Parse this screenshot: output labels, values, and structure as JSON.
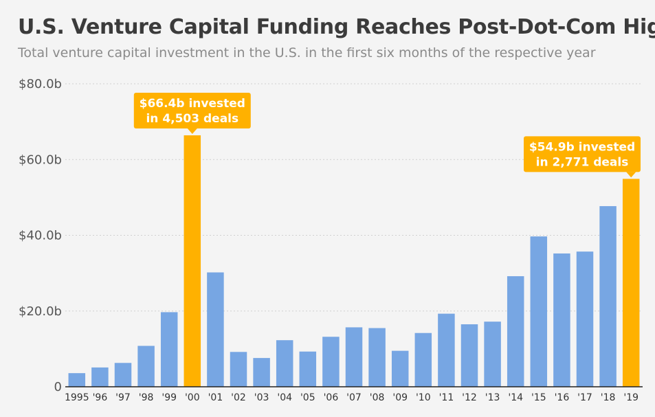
{
  "title": "U.S. Venture Capital Funding Reaches Post-Dot-Com High",
  "subtitle": "Total venture capital investment in the U.S. in the first six months of the respective year",
  "colors": {
    "bar": "#77a6e3",
    "highlight": "#ffb100",
    "grid": "#cfcfcf",
    "background": "#f4f4f4"
  },
  "chart_data": {
    "type": "bar",
    "categories": [
      "1995",
      "'96",
      "'97",
      "'98",
      "'99",
      "'00",
      "'01",
      "'02",
      "'03",
      "'04",
      "'05",
      "'06",
      "'07",
      "'08",
      "'09",
      "'10",
      "'11",
      "'12",
      "'13",
      "'14",
      "'15",
      "'16",
      "'17",
      "'18",
      "'19"
    ],
    "values": [
      3.6,
      5.1,
      6.3,
      10.8,
      19.7,
      66.4,
      30.2,
      9.2,
      7.6,
      12.3,
      9.3,
      13.2,
      15.7,
      15.5,
      9.5,
      14.2,
      19.3,
      16.5,
      17.2,
      29.2,
      39.7,
      35.2,
      35.7,
      47.7,
      54.9
    ],
    "highlighted": [
      "'00",
      "'19"
    ],
    "ylim": [
      0,
      80
    ],
    "yticks": [
      0,
      20,
      40,
      60,
      80
    ],
    "ytick_labels": [
      "0",
      "$20.0b",
      "$40.0b",
      "$60.0b",
      "$80.0b"
    ],
    "grid": true,
    "annotations": [
      {
        "category": "'00",
        "lines": [
          "$66.4b invested",
          "in 4,503 deals"
        ]
      },
      {
        "category": "'19",
        "lines": [
          "$54.9b invested",
          "in 2,771 deals"
        ]
      }
    ]
  }
}
